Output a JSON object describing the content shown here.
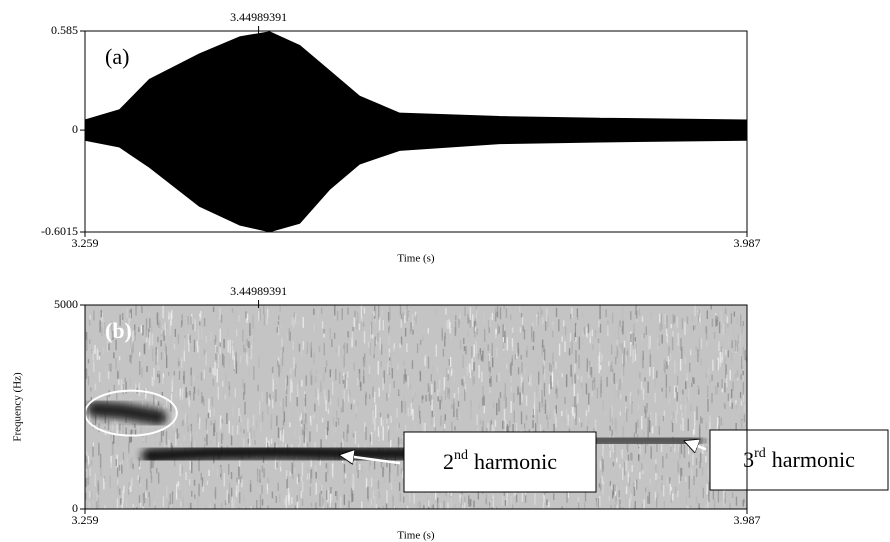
{
  "chart_data": [
    {
      "type": "waveform",
      "panel_label": "(a)",
      "cursor": 3.44989391,
      "xlabel": "Time (s)",
      "xlim": [
        3.259,
        3.987
      ],
      "xticks": [
        3.259,
        3.987
      ],
      "ylim": [
        -0.6015,
        0.585
      ],
      "yticks": [
        -0.6015,
        0,
        0.585
      ],
      "color": "#000000",
      "x": [
        3.259,
        3.297,
        3.33,
        3.385,
        3.429,
        3.462,
        3.495,
        3.528,
        3.561,
        3.605,
        3.715,
        3.825,
        3.987
      ],
      "upper": [
        0.06,
        0.12,
        0.3,
        0.45,
        0.55,
        0.58,
        0.5,
        0.35,
        0.2,
        0.1,
        0.08,
        0.07,
        0.06
      ],
      "lower": [
        -0.06,
        -0.1,
        -0.22,
        -0.45,
        -0.56,
        -0.6,
        -0.55,
        -0.35,
        -0.2,
        -0.12,
        -0.08,
        -0.07,
        -0.06
      ]
    },
    {
      "type": "spectrogram",
      "panel_label": "(b)",
      "cursor": 3.44989391,
      "xlabel": "Time (s)",
      "ylabel": "Frequency (Hz)",
      "xlim": [
        3.259,
        3.987
      ],
      "xticks": [
        3.259,
        3.987
      ],
      "ylim": [
        0,
        5000
      ],
      "yticks": [
        0,
        5000
      ],
      "color": "#151515",
      "series": [
        {
          "color": "#151515",
          "x": [
            3.33,
            3.4,
            3.47,
            3.55,
            3.62
          ],
          "values": [
            1300,
            1380,
            1400,
            1360,
            1350
          ]
        },
        {
          "color": "#555555",
          "x": [
            3.62,
            3.75,
            3.88,
            3.93
          ],
          "values": [
            1650,
            1680,
            1700,
            1680
          ]
        },
        {
          "color": "#222222",
          "x": [
            3.27,
            3.3,
            3.34
          ],
          "values": [
            2450,
            2400,
            2250
          ]
        }
      ],
      "highlight": {
        "x": [
          3.259,
          3.36
        ],
        "y": [
          1800,
          2900
        ]
      },
      "annotations": [
        {
          "number": "2",
          "suffix": "nd",
          "text": "harmonic",
          "x": 3.54,
          "y": 1320
        },
        {
          "number": "3",
          "suffix": "rd",
          "text": "harmonic",
          "x": 3.919,
          "y": 1660
        }
      ]
    }
  ]
}
